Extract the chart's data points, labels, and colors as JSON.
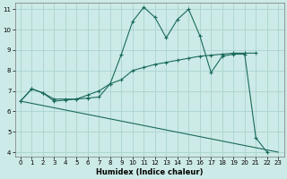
{
  "xlabel": "Humidex (Indice chaleur)",
  "background_color": "#cceae7",
  "grid_color": "#aad4d0",
  "line_color": "#1a6b5a",
  "xlim": [
    -0.5,
    23.5
  ],
  "ylim": [
    3.8,
    11.3
  ],
  "xticks": [
    0,
    1,
    2,
    3,
    4,
    5,
    6,
    7,
    8,
    9,
    10,
    11,
    12,
    13,
    14,
    15,
    16,
    17,
    18,
    19,
    20,
    21,
    22,
    23
  ],
  "yticks": [
    4,
    5,
    6,
    7,
    8,
    9,
    10,
    11
  ],
  "line1_x": [
    0,
    1,
    2,
    3,
    4,
    5,
    6,
    7,
    8,
    9,
    10,
    11,
    12,
    13,
    14,
    15,
    16,
    17,
    18,
    19,
    20,
    21,
    22
  ],
  "line1_y": [
    6.5,
    7.1,
    6.9,
    6.6,
    6.6,
    6.6,
    6.8,
    7.0,
    7.35,
    8.8,
    10.4,
    11.1,
    10.6,
    9.6,
    10.5,
    11.0,
    9.7,
    7.9,
    8.7,
    8.8,
    8.8,
    4.7,
    4.0
  ],
  "line2_x": [
    0,
    1,
    2,
    3,
    4,
    5,
    6,
    7,
    8,
    9,
    10,
    11,
    12,
    13,
    14,
    15,
    16,
    17,
    18,
    19,
    20,
    21
  ],
  "line2_y": [
    6.5,
    7.1,
    6.9,
    6.5,
    6.55,
    6.6,
    6.65,
    6.7,
    7.35,
    7.55,
    8.0,
    8.15,
    8.3,
    8.4,
    8.5,
    8.6,
    8.7,
    8.75,
    8.8,
    8.85,
    8.85,
    8.85
  ],
  "line3_x": [
    0,
    23
  ],
  "line3_y": [
    6.5,
    4.0
  ]
}
